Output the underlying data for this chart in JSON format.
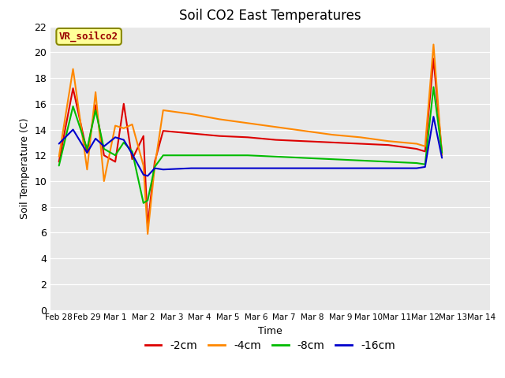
{
  "title": "Soil CO2 East Temperatures",
  "xlabel": "Time",
  "ylabel": "Soil Temperature (C)",
  "ylim": [
    0,
    22
  ],
  "yticks": [
    0,
    2,
    4,
    6,
    8,
    10,
    12,
    14,
    16,
    18,
    20,
    22
  ],
  "bg_color": "#e8e8e8",
  "legend_label": "VR_soilco2",
  "series": {
    "-2cm": {
      "color": "#dd0000",
      "x": [
        0,
        0.5,
        1.0,
        1.3,
        1.6,
        2.0,
        2.3,
        2.6,
        3.0,
        3.15,
        3.4,
        3.7,
        4.7,
        5.7,
        6.7,
        7.7,
        8.7,
        9.7,
        10.7,
        11.7,
        12.7,
        13.0,
        13.3,
        13.6
      ],
      "values": [
        11.5,
        17.2,
        12.2,
        15.9,
        12.0,
        11.5,
        16.0,
        11.7,
        13.5,
        6.5,
        11.5,
        13.9,
        13.7,
        13.5,
        13.4,
        13.2,
        13.1,
        13.0,
        12.9,
        12.8,
        12.5,
        12.3,
        19.5,
        12.1
      ]
    },
    "-4cm": {
      "color": "#ff8800",
      "x": [
        0,
        0.5,
        1.0,
        1.3,
        1.6,
        2.0,
        2.3,
        2.6,
        3.0,
        3.15,
        3.4,
        3.7,
        4.7,
        5.7,
        6.7,
        7.7,
        8.7,
        9.7,
        10.7,
        11.7,
        12.7,
        13.0,
        13.3,
        13.6
      ],
      "values": [
        11.9,
        18.7,
        10.9,
        16.9,
        10.0,
        14.3,
        14.1,
        14.4,
        11.2,
        5.9,
        11.1,
        15.5,
        15.2,
        14.8,
        14.5,
        14.2,
        13.9,
        13.6,
        13.4,
        13.1,
        12.9,
        12.7,
        20.6,
        12.0
      ]
    },
    "-8cm": {
      "color": "#00bb00",
      "x": [
        0,
        0.5,
        1.0,
        1.3,
        1.6,
        2.0,
        2.3,
        2.6,
        3.0,
        3.15,
        3.4,
        3.7,
        4.7,
        5.7,
        6.7,
        7.7,
        8.7,
        9.7,
        10.7,
        11.7,
        12.7,
        13.0,
        13.3,
        13.6
      ],
      "values": [
        11.2,
        15.8,
        12.5,
        15.5,
        12.5,
        12.0,
        13.0,
        12.3,
        8.3,
        8.5,
        11.1,
        12.0,
        12.0,
        12.0,
        12.0,
        11.9,
        11.8,
        11.7,
        11.6,
        11.5,
        11.4,
        11.3,
        17.3,
        12.2
      ]
    },
    "-16cm": {
      "color": "#0000cc",
      "x": [
        0,
        0.5,
        1.0,
        1.3,
        1.6,
        2.0,
        2.3,
        2.6,
        3.0,
        3.15,
        3.4,
        3.7,
        4.7,
        5.7,
        6.7,
        7.7,
        8.7,
        9.7,
        10.7,
        11.7,
        12.7,
        13.0,
        13.3,
        13.6
      ],
      "values": [
        12.9,
        14.0,
        12.2,
        13.3,
        12.7,
        13.4,
        13.2,
        12.1,
        10.5,
        10.4,
        11.0,
        10.9,
        11.0,
        11.0,
        11.0,
        11.0,
        11.0,
        11.0,
        11.0,
        11.0,
        11.0,
        11.1,
        15.0,
        11.8
      ]
    }
  },
  "xtick_positions": [
    0,
    1,
    2,
    3,
    4,
    5,
    6,
    7,
    8,
    9,
    10,
    11,
    12,
    13,
    14,
    15
  ],
  "xtick_labels": [
    "Feb 28",
    "Feb 29",
    "Mar 1",
    "Mar 2",
    "Mar 3",
    "Mar 4",
    "Mar 5",
    "Mar 6",
    "Mar 7",
    "Mar 8",
    "Mar 9",
    "Mar 10",
    "Mar 11",
    "Mar 12",
    "Mar 13",
    "Mar 14"
  ],
  "xlim": [
    -0.3,
    15.3
  ]
}
